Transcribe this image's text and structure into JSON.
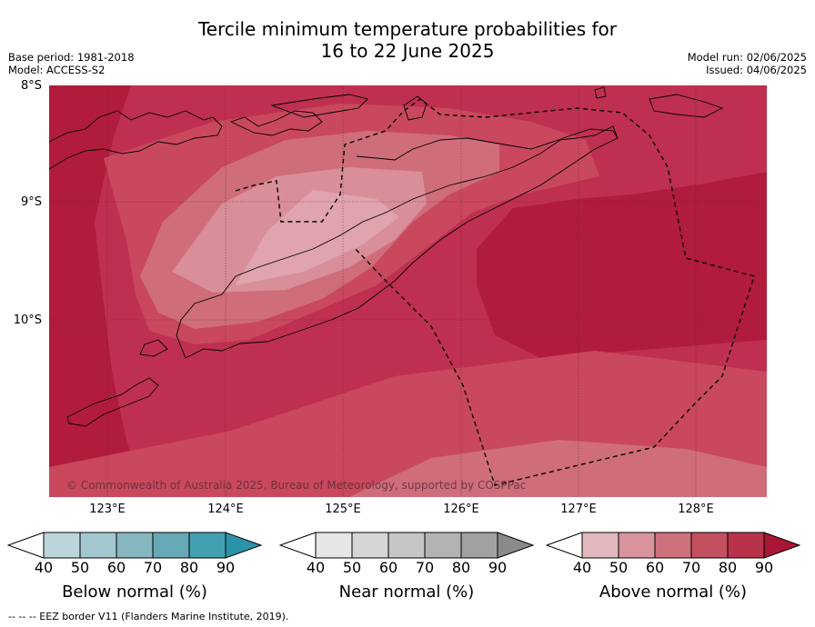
{
  "title": {
    "line1": "Tercile minimum temperature probabilities for",
    "line2": "16 to 22 June 2025"
  },
  "meta": {
    "base_period": "Base period: 1981-2018",
    "model": "Model: ACCESS-S2",
    "model_run": "Model run: 02/06/2025",
    "issued": "Issued: 04/06/2025"
  },
  "map": {
    "lat_labels": [
      "8°S",
      "9°S",
      "10°S"
    ],
    "lon_labels": [
      "123°E",
      "124°E",
      "125°E",
      "126°E",
      "127°E",
      "128°E"
    ],
    "copyright": "© Commonwealth of Australia 2025, Bureau of Meteorology, supported by COSPPac",
    "colors": {
      "above_90": "#b21c3c",
      "above_80": "#bf3050",
      "above_70": "#c9485e",
      "above_60": "#cf6d7a",
      "above_50": "#d98f99",
      "coast": "#000000"
    }
  },
  "legends": [
    {
      "label": "Below normal (%)",
      "ticks": [
        "40",
        "50",
        "60",
        "70",
        "80",
        "90"
      ],
      "colors": [
        "#ffffff",
        "#bcd5da",
        "#a3c7ce",
        "#86b7c1",
        "#66a8b5",
        "#43a0b0",
        "#2b93a8"
      ]
    },
    {
      "label": "Near normal (%)",
      "ticks": [
        "40",
        "50",
        "60",
        "70",
        "80",
        "90"
      ],
      "colors": [
        "#ffffff",
        "#e6e6e6",
        "#d6d6d6",
        "#c5c5c5",
        "#b3b3b3",
        "#a1a1a1",
        "#8a8a8a"
      ]
    },
    {
      "label": "Above normal (%)",
      "ticks": [
        "40",
        "50",
        "60",
        "70",
        "80",
        "90"
      ],
      "colors": [
        "#ffffff",
        "#e3b7be",
        "#d9939d",
        "#cd717d",
        "#c2505f",
        "#b8324b",
        "#ab1535"
      ]
    }
  ],
  "footer": "--  --  -- EEZ border V11 (Flanders Marine Institute, 2019)."
}
